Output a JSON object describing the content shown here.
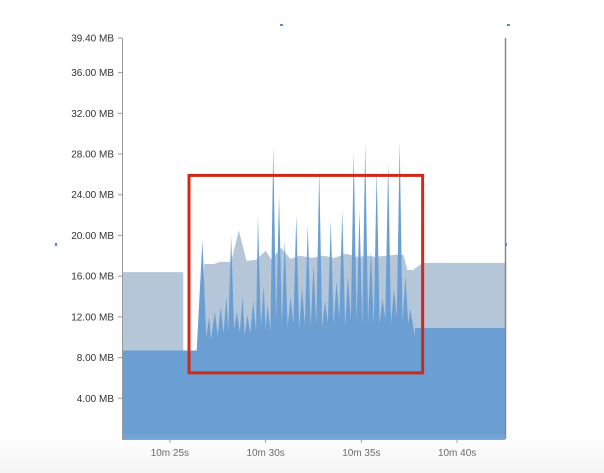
{
  "chart_data": {
    "type": "area",
    "title": "",
    "xlabel": "",
    "ylabel": "",
    "y_unit": "MB",
    "ylim": [
      0,
      39.4
    ],
    "xlim_seconds": [
      622.5,
      642.5
    ],
    "yticks": [
      {
        "value": 4.0,
        "label": "4.00 MB"
      },
      {
        "value": 8.0,
        "label": "8.00 MB"
      },
      {
        "value": 12.0,
        "label": "12.00 MB"
      },
      {
        "value": 16.0,
        "label": "16.00 MB"
      },
      {
        "value": 20.0,
        "label": "20.00 MB"
      },
      {
        "value": 24.0,
        "label": "24.00 MB"
      },
      {
        "value": 28.0,
        "label": "28.00 MB"
      },
      {
        "value": 32.0,
        "label": "32.00 MB"
      },
      {
        "value": 36.0,
        "label": "36.00 MB"
      },
      {
        "value": 39.4,
        "label": "39.40 MB"
      }
    ],
    "xticks": [
      {
        "value": 625,
        "label": "10m 25s"
      },
      {
        "value": 630,
        "label": "10m 30s"
      },
      {
        "value": 635,
        "label": "10m 35s"
      },
      {
        "value": 640,
        "label": "10m 40s"
      }
    ],
    "grid": false,
    "colors": {
      "total_heap": "#b4c6d8",
      "used_heap": "#6b9fd3",
      "axis": "#999999",
      "highlight_box": "#cc2a1a"
    },
    "series": [
      {
        "x": [
          622.5,
          625.7,
          625.7,
          626.5,
          626.8,
          627.3,
          627.6,
          628.2,
          628.6,
          629.0,
          629.5,
          630.0,
          630.3,
          630.8,
          631.3,
          631.8,
          632.4,
          633.0,
          633.6,
          634.2,
          634.8,
          635.4,
          635.7,
          636.3,
          636.8,
          637.2,
          637.4,
          637.7,
          638.2,
          642.5
        ],
        "y": [
          16.4,
          16.4,
          8.5,
          8.5,
          17.2,
          17.2,
          17.4,
          17.4,
          20.5,
          17.5,
          17.6,
          18.5,
          17.6,
          18.8,
          17.7,
          18.0,
          17.8,
          18.0,
          17.8,
          18.2,
          17.9,
          18.0,
          17.9,
          18.0,
          18.1,
          18.1,
          16.6,
          16.6,
          17.3,
          17.3
        ]
      },
      {
        "x": [
          622.5,
          626.4,
          626.7,
          626.9,
          627.05,
          627.15,
          627.35,
          627.5,
          627.65,
          627.8,
          627.95,
          628.05,
          628.2,
          628.35,
          628.5,
          628.65,
          628.8,
          628.9,
          629.05,
          629.2,
          629.35,
          629.5,
          629.6,
          629.75,
          629.9,
          630.0,
          630.1,
          630.25,
          630.4,
          630.55,
          630.7,
          630.85,
          631.0,
          631.15,
          631.3,
          631.45,
          631.6,
          631.75,
          631.9,
          632.05,
          632.2,
          632.35,
          632.5,
          632.65,
          632.8,
          632.95,
          633.1,
          633.25,
          633.4,
          633.55,
          633.7,
          633.85,
          634.0,
          634.15,
          634.3,
          634.45,
          634.6,
          634.75,
          634.9,
          635.05,
          635.2,
          635.35,
          635.5,
          635.65,
          635.8,
          635.95,
          636.1,
          636.25,
          636.4,
          636.55,
          636.7,
          636.85,
          637.0,
          637.15,
          637.3,
          637.45,
          637.55,
          637.8,
          637.8,
          642.5
        ],
        "y": [
          8.7,
          8.7,
          19.5,
          10.0,
          12.0,
          9.8,
          12.5,
          10.2,
          13.0,
          10.4,
          14.0,
          10.6,
          20.0,
          10.8,
          12.5,
          10.5,
          14.0,
          10.2,
          12.2,
          10.4,
          13.5,
          10.6,
          22.0,
          11.0,
          15.0,
          10.8,
          13.2,
          10.6,
          28.8,
          11.5,
          24.0,
          11.2,
          19.5,
          10.9,
          14.0,
          11.3,
          22.0,
          10.8,
          14.8,
          11.2,
          21.0,
          10.9,
          17.0,
          11.3,
          26.5,
          10.9,
          13.6,
          11.4,
          21.5,
          11.2,
          15.5,
          11.8,
          22.5,
          11.0,
          16.0,
          11.7,
          28.2,
          11.4,
          22.5,
          11.1,
          29.0,
          11.6,
          18.5,
          11.2,
          26.5,
          11.3,
          13.8,
          11.8,
          27.2,
          11.3,
          14.8,
          12.0,
          29.2,
          11.5,
          16.0,
          11.3,
          12.8,
          10.0,
          10.9,
          10.9
        ]
      }
    ],
    "annotations": [
      {
        "type": "rectangle",
        "x_range": [
          626.0,
          638.2
        ],
        "y_range": [
          6.5,
          25.9
        ],
        "color": "#cc2a1a"
      }
    ]
  }
}
